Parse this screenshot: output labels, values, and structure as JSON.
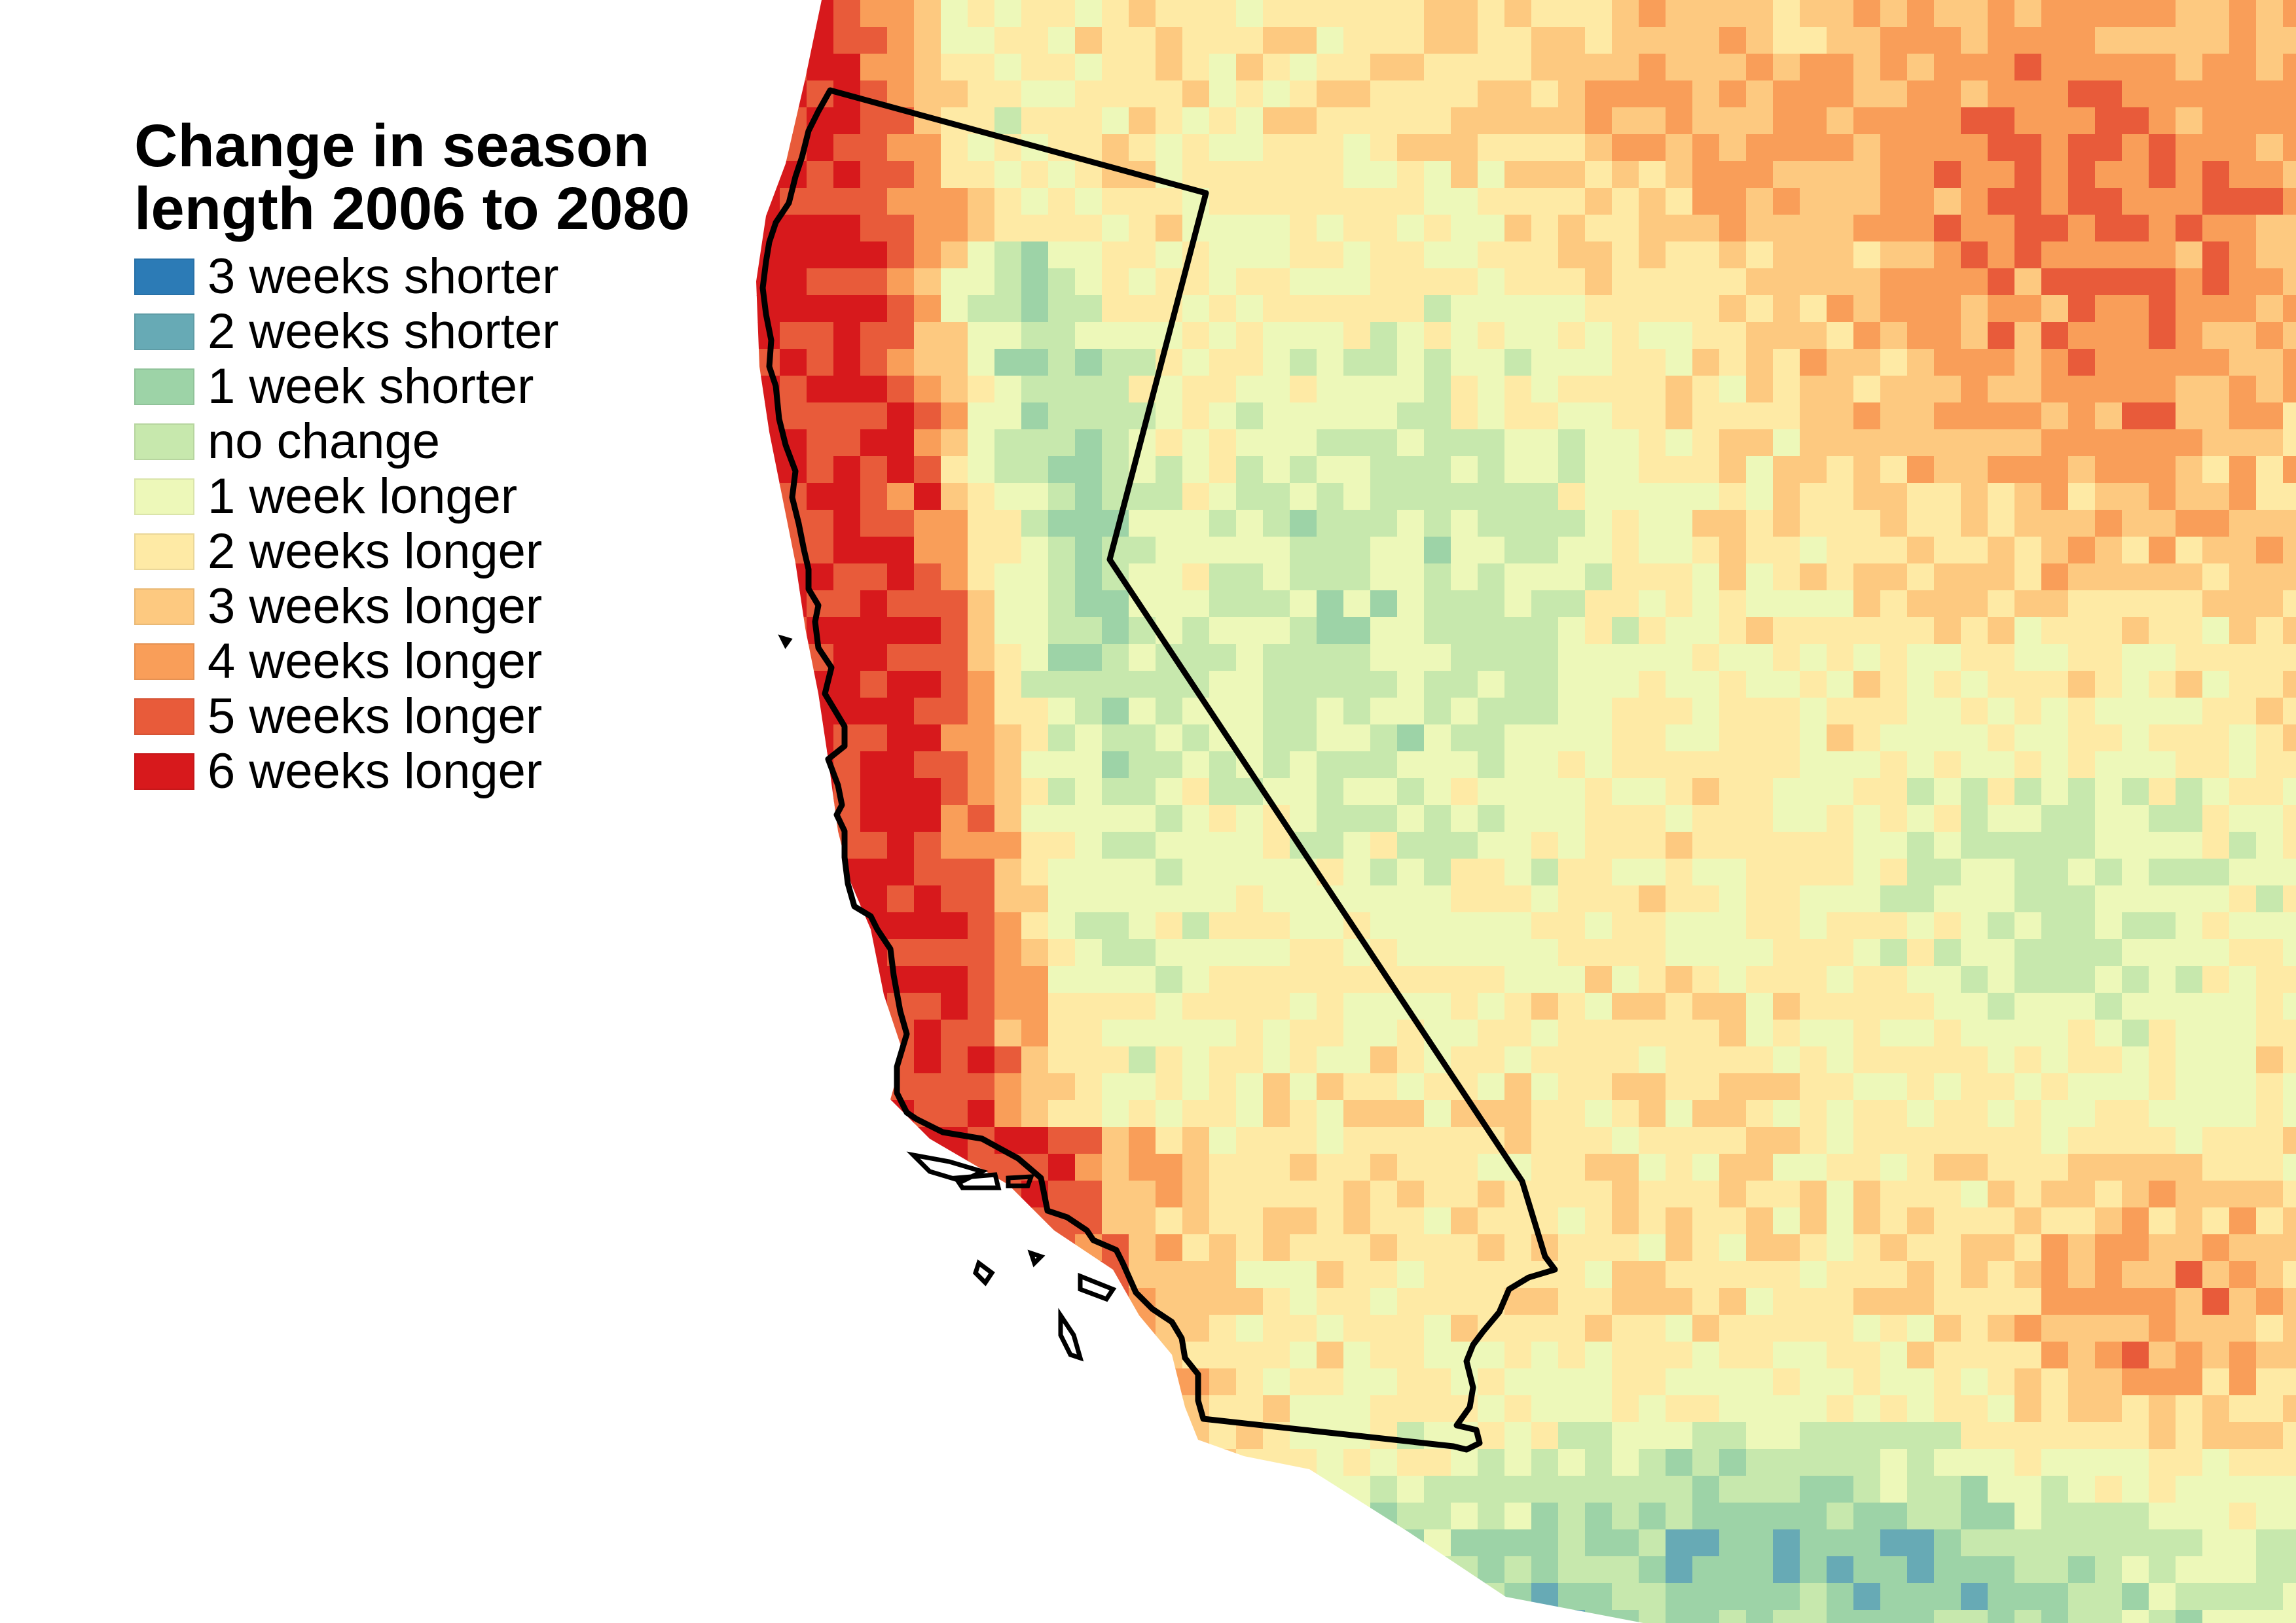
{
  "legend": {
    "title_line1": "Change in season",
    "title_line2": "length 2006 to 2080",
    "items": [
      {
        "label": "3 weeks shorter",
        "color": "#2c7bb6"
      },
      {
        "label": "2 weeks shorter",
        "color": "#67aab5"
      },
      {
        "label": "1 week shorter",
        "color": "#9dd3a7"
      },
      {
        "label": "no change",
        "color": "#c7e8ad"
      },
      {
        "label": "1 week longer",
        "color": "#edf8b9"
      },
      {
        "label": "2 weeks longer",
        "color": "#feeaa5"
      },
      {
        "label": "3 weeks longer",
        "color": "#fdc980"
      },
      {
        "label": "4 weeks longer",
        "color": "#f99e59"
      },
      {
        "label": "5 weeks longer",
        "color": "#e85b3a"
      },
      {
        "label": "6 weeks longer",
        "color": "#d7191c"
      }
    ]
  },
  "map": {
    "background_color": "#ffffff",
    "outline_color": "#000000",
    "outline_feature": "California state boundary"
  }
}
